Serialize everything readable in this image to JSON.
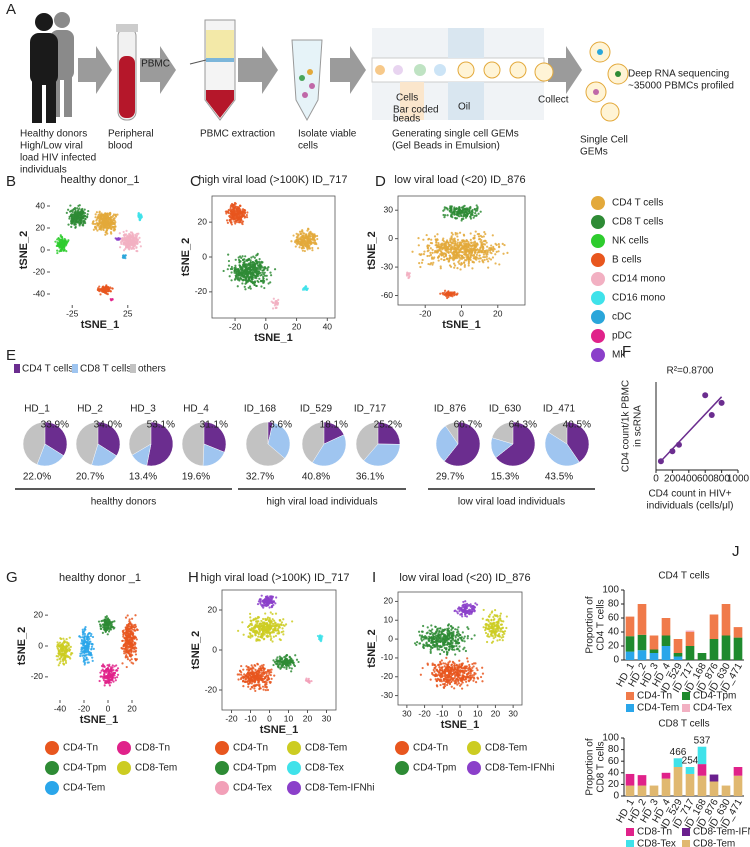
{
  "workflow": {
    "letter": "A",
    "steps": [
      {
        "label": [
          "Healthy donors",
          "High/Low viral",
          "load HIV infected",
          "individuals"
        ]
      },
      {
        "label": [
          "Peripheral",
          "blood"
        ]
      },
      {
        "label": [
          "PBMC extraction"
        ]
      },
      {
        "label": [
          "Isolate viable",
          "cells"
        ]
      },
      {
        "label": [
          "Generating single cell GEMs",
          "(Gel Beads in Emulsion)"
        ]
      },
      {
        "label": [
          "Single Cell",
          "GEMs"
        ]
      },
      {
        "label": [
          "Deep RNA sequencing",
          "~35000 PBMCs profiled"
        ]
      }
    ],
    "callouts": {
      "pbmc": "PBMC",
      "cells": "Cells",
      "beads": [
        "Bar coded",
        "beads"
      ],
      "oil": "Oil",
      "collect": "Collect"
    }
  },
  "tsne_cell_types": {
    "panels": [
      {
        "letter": "B",
        "title": "healthy  donor_1",
        "xlabel": "tSNE_1",
        "ylabel": "tSNE_2",
        "xlim": [
          -45,
          45
        ],
        "ylim": [
          -50,
          50
        ],
        "xticks": [
          -25,
          25
        ],
        "yticks": [
          40,
          20,
          0,
          -20,
          -40
        ]
      },
      {
        "letter": "C",
        "title": "high viral load (>100K) ID_717",
        "xlabel": "tSNE_1",
        "ylabel": "tSNE_2",
        "xlim": [
          -35,
          45
        ],
        "ylim": [
          -35,
          35
        ],
        "xticks": [
          -20,
          0,
          20,
          40
        ],
        "yticks": [
          20,
          0,
          -20
        ]
      },
      {
        "letter": "D",
        "title": "low viral load (<20) ID_876",
        "xlabel": "tSNE_1",
        "ylabel": "tSNE_2",
        "xlim": [
          -35,
          35
        ],
        "ylim": [
          -70,
          45
        ],
        "xticks": [
          -20,
          0,
          20
        ],
        "yticks": [
          30,
          0,
          -30,
          -60
        ]
      }
    ],
    "legend": [
      {
        "name": "CD4 T cells",
        "color": "#e3a93b"
      },
      {
        "name": "CD8 T cells",
        "color": "#2e8b35"
      },
      {
        "name": "NK cells",
        "color": "#2ecc2e"
      },
      {
        "name": "B cells",
        "color": "#e8561e"
      },
      {
        "name": "CD14 mono",
        "color": "#f2b0c2"
      },
      {
        "name": "CD16 mono",
        "color": "#3fe2ea"
      },
      {
        "name": "cDC",
        "color": "#2aa6da"
      },
      {
        "name": "pDC",
        "color": "#e0228a"
      },
      {
        "name": "Mk",
        "color": "#8b3fca"
      }
    ]
  },
  "composition": {
    "letter": "E",
    "legend": [
      {
        "name": "CD4 T cells",
        "color": "#6b2d8f"
      },
      {
        "name": "CD8 T cells",
        "color": "#9fc5f0"
      },
      {
        "name": "others",
        "color": "#c2c2c2"
      }
    ],
    "groups": [
      {
        "name": "healthy donors",
        "samples": [
          {
            "name": "HD_1",
            "values": [
              33.9,
              22.0
            ],
            "value_labels": [
              "33.9%",
              "22.0%"
            ]
          },
          {
            "name": "HD_2",
            "values": [
              34.0,
              20.7
            ],
            "value_labels": [
              "34.0%",
              "20.7%"
            ]
          },
          {
            "name": "HD_3",
            "values": [
              53.1,
              13.4
            ],
            "value_labels": [
              "53.1%",
              "13.4%"
            ]
          },
          {
            "name": "HD_4",
            "values": [
              31.1,
              19.6
            ],
            "value_labels": [
              "31.1%",
              "19.6%"
            ]
          }
        ]
      },
      {
        "name": "high viral load individuals",
        "samples": [
          {
            "name": "ID_168",
            "values": [
              3.6,
              32.7
            ],
            "value_labels": [
              "3.6%",
              "32.7%"
            ]
          },
          {
            "name": "ID_529",
            "values": [
              18.1,
              40.8
            ],
            "value_labels": [
              "18.1%",
              "40.8%"
            ]
          },
          {
            "name": "ID_717",
            "values": [
              25.2,
              36.1
            ],
            "value_labels": [
              "25.2%",
              "36.1%"
            ]
          }
        ]
      },
      {
        "name": "low viral load individuals",
        "samples": [
          {
            "name": "ID_876",
            "values": [
              60.7,
              29.7
            ],
            "value_labels": [
              "60.7%",
              "29.7%"
            ]
          },
          {
            "name": "ID_630",
            "values": [
              64.3,
              15.3
            ],
            "value_labels": [
              "64.3%",
              "15.3%"
            ]
          },
          {
            "name": "ID_471",
            "values": [
              40.5,
              43.5
            ],
            "value_labels": [
              "40.5%",
              "43.5%"
            ]
          }
        ]
      }
    ]
  },
  "correlation": {
    "letter": "F",
    "type": "scatter",
    "title": "R²=0.8700",
    "ylabel": [
      "CD4 count/1k PBMC",
      "in scRNA"
    ],
    "xlabel": [
      "CD4 count in HIV+",
      "individuals (cells/μl)"
    ],
    "x": [
      60,
      200,
      280,
      600,
      680,
      800
    ],
    "y": [
      80,
      170,
      230,
      680,
      500,
      610
    ],
    "xlim": [
      0,
      1000
    ],
    "xticks": [
      0,
      200,
      400,
      600,
      800,
      1000
    ],
    "ylim": [
      0,
      800
    ],
    "color": "#6b2d8f"
  },
  "tsne_subsets": {
    "panels": [
      {
        "letter": "G",
        "title": "healthy  donor _1",
        "xlabel": "tSNE_1",
        "ylabel": "tSNE_2",
        "xlim": [
          -50,
          35
        ],
        "ylim": [
          -35,
          35
        ],
        "xticks": [
          -40,
          -20,
          0,
          20
        ],
        "yticks": [
          20,
          0,
          -20
        ],
        "legend": [
          {
            "name": "CD4-Tn",
            "color": "#e8561e"
          },
          {
            "name": "CD8-Tn",
            "color": "#e0228a"
          },
          {
            "name": "CD4-Tpm",
            "color": "#2e8b35"
          },
          {
            "name": "CD8-Tem",
            "color": "#cccc22"
          },
          {
            "name": "CD4-Tem",
            "color": "#2aa6ea"
          }
        ]
      },
      {
        "letter": "H",
        "title": "high viral load (>100K) ID_717",
        "xlabel": "tSNE_1",
        "ylabel": "tSNE_2",
        "xlim": [
          -25,
          35
        ],
        "ylim": [
          -30,
          30
        ],
        "xticks": [
          -20,
          -10,
          0,
          10,
          20,
          30
        ],
        "yticks": [
          20,
          0,
          -20
        ],
        "legend": [
          {
            "name": "CD4-Tn",
            "color": "#e8561e"
          },
          {
            "name": "CD8-Tem",
            "color": "#cccc22"
          },
          {
            "name": "CD4-Tpm",
            "color": "#2e8b35"
          },
          {
            "name": "CD8-Tex",
            "color": "#3fe2ea"
          },
          {
            "name": "CD4-Tex",
            "color": "#f2a0b8"
          },
          {
            "name": "CD8-Tem-IFNhi",
            "color": "#8b3fca"
          }
        ]
      },
      {
        "letter": "I",
        "title": "low viral load (<20) ID_876",
        "xlabel": "tSNE_1",
        "ylabel": "tSNE_2",
        "xlim": [
          -35,
          35
        ],
        "ylim": [
          -35,
          25
        ],
        "xticks": [
          {
            "value": -30,
            "label": "30"
          },
          -20,
          -10,
          0,
          10,
          20,
          30
        ],
        "yticks": [
          20,
          10,
          0,
          -10,
          -20,
          -30
        ],
        "legend": [
          {
            "name": "CD4-Tn",
            "color": "#e8561e"
          },
          {
            "name": "CD8-Tem",
            "color": "#cccc22"
          },
          {
            "name": "CD4-Tpm",
            "color": "#2e8b35"
          },
          {
            "name": "CD8-Tem-IFNhi",
            "color": "#8b3fca"
          }
        ]
      }
    ]
  },
  "proportions": {
    "letter": "J",
    "charts": [
      {
        "type": "bar",
        "stacked": true,
        "title": "CD4 T cells",
        "ylabel": [
          "Proportion of",
          "CD4 T cells"
        ],
        "categories": [
          "HD_1",
          "HD_2",
          "HD_3",
          "HD_4",
          "ID_529",
          "ID_717",
          "ID_168",
          "ID_876",
          "ID_630",
          "ID_471"
        ],
        "ylim": [
          0,
          100
        ],
        "yticks": [
          0,
          20,
          40,
          60,
          80,
          100
        ],
        "series": [
          {
            "name": "CD4-Tem",
            "color": "#2aa6ea",
            "values": [
              12,
              14,
              10,
              20,
              5,
              0,
              0,
              0,
              0,
              0
            ]
          },
          {
            "name": "CD4-Tpm",
            "color": "#1f8a2e",
            "values": [
              22,
              22,
              5,
              15,
              5,
              20,
              10,
              30,
              35,
              32
            ]
          },
          {
            "name": "CD4-Tn",
            "color": "#f07a4a",
            "values": [
              28,
              44,
              20,
              25,
              20,
              20,
              0,
              35,
              45,
              15
            ]
          },
          {
            "name": "CD4-Tex",
            "color": "#f2b0c2",
            "values": [
              0,
              0,
              0,
              0,
              0,
              2,
              0,
              0,
              0,
              0
            ]
          }
        ],
        "legend_order": [
          "CD4-Tn",
          "CD4-Tpm",
          "CD4-Tem",
          "CD4-Tex"
        ]
      },
      {
        "type": "bar",
        "stacked": true,
        "title": "CD8 T cells",
        "ylabel": [
          "Proportion of",
          "CD8 T cells"
        ],
        "categories": [
          "HD_1",
          "HD_2",
          "HD_3",
          "HD_4",
          "ID_529",
          "ID_717",
          "ID_168",
          "ID_876",
          "ID_630",
          "ID_471"
        ],
        "ylim": [
          0,
          100
        ],
        "yticks": [
          0,
          20,
          40,
          60,
          80,
          100
        ],
        "series": [
          {
            "name": "CD8-Tem",
            "color": "#e0b870",
            "values": [
              18,
              18,
              18,
              30,
              50,
              38,
              35,
              25,
              18,
              35
            ]
          },
          {
            "name": "CD8-Tem-IFNhi",
            "color": "#6a1f8e",
            "values": [
              0,
              0,
              0,
              0,
              0,
              0,
              0,
              12,
              0,
              0
            ]
          },
          {
            "name": "CD8-Tn",
            "color": "#e0228a",
            "values": [
              20,
              18,
              0,
              10,
              0,
              0,
              20,
              0,
              0,
              15
            ]
          },
          {
            "name": "CD8-Tex",
            "color": "#3fe2ea",
            "values": [
              0,
              0,
              0,
              0,
              15,
              12,
              30,
              0,
              0,
              0
            ]
          }
        ],
        "annotations": [
          null,
          null,
          null,
          null,
          "466",
          "254",
          "537",
          null,
          null,
          null
        ],
        "legend_order": [
          "CD8-Tn",
          "CD8-Tem-IFNhi",
          "CD8-Tex",
          "CD8-Tem"
        ]
      }
    ]
  }
}
